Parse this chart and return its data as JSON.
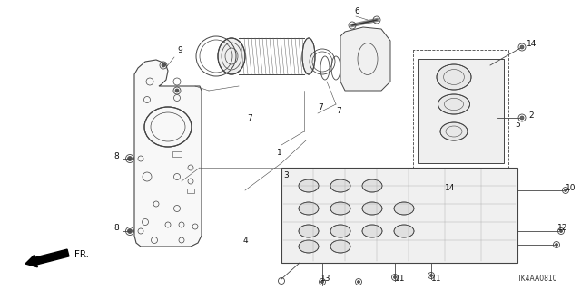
{
  "bg_color": "#ffffff",
  "diagram_code": "TK4AA0810",
  "fr_label": "FR.",
  "lc": "#444444",
  "lw": 0.6,
  "figsize": [
    6.4,
    3.2
  ],
  "dpi": 100,
  "xlim": [
    0,
    640
  ],
  "ylim": [
    0,
    320
  ]
}
